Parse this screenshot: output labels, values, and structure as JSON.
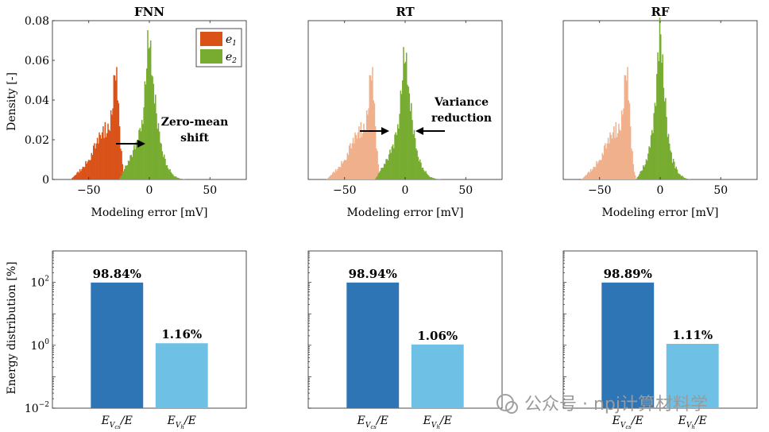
{
  "top_ylabel": "Density [-]",
  "top_xlabel": "Modeling error [mV]",
  "bottom_ylabel": "Energy distribution [%]",
  "watermark": "公众号 · npj计算材料学",
  "colors": {
    "e1": "#d95319",
    "e1_faded": "#f0b08c",
    "e2": "#77ac30",
    "bar_cs": "#2e75b6",
    "bar_h": "#6ec0e4"
  },
  "chart_data": [
    {
      "type": "area",
      "title": "FNN",
      "xlabel": "Modeling error [mV]",
      "ylabel": "Density [-]",
      "xlim": [
        -80,
        80
      ],
      "ylim": [
        0,
        0.08
      ],
      "xticks": [
        "-50",
        "0",
        "50"
      ],
      "yticks": [
        "0",
        "0.02",
        "0.04",
        "0.06",
        "0.08"
      ],
      "legend": {
        "position": "top-right",
        "entries": [
          "e1",
          "e2"
        ]
      },
      "series": [
        {
          "name": "e1",
          "x": [
            -65,
            -58,
            -50,
            -45,
            -40,
            -35,
            -32,
            -30,
            -28,
            -26,
            -24,
            -22,
            -20
          ],
          "y": [
            0,
            0.004,
            0.01,
            0.016,
            0.022,
            0.026,
            0.03,
            0.045,
            0.056,
            0.04,
            0.02,
            0.006,
            0
          ]
        },
        {
          "name": "e2",
          "x": [
            -25,
            -20,
            -15,
            -10,
            -6,
            -3,
            -1,
            0,
            1,
            3,
            6,
            10,
            15,
            20,
            25,
            30
          ],
          "y": [
            0,
            0.006,
            0.012,
            0.018,
            0.028,
            0.05,
            0.07,
            0.078,
            0.068,
            0.05,
            0.03,
            0.015,
            0.006,
            0.002,
            0.0005,
            0
          ]
        }
      ],
      "annotations": [
        {
          "text_lines": [
            "Zero-mean",
            "shift"
          ],
          "arrow": "right"
        }
      ]
    },
    {
      "type": "area",
      "title": "RT",
      "xlabel": "Modeling error [mV]",
      "xlim": [
        -80,
        80
      ],
      "ylim": [
        0,
        0.08
      ],
      "xticks": [
        "-50",
        "0",
        "50"
      ],
      "series": [
        {
          "name": "e1",
          "x": [
            -65,
            -58,
            -50,
            -45,
            -40,
            -35,
            -32,
            -30,
            -28,
            -26,
            -24,
            -22,
            -20
          ],
          "y": [
            0,
            0.004,
            0.01,
            0.016,
            0.022,
            0.026,
            0.03,
            0.045,
            0.056,
            0.04,
            0.02,
            0.006,
            0
          ],
          "faded": true
        },
        {
          "name": "e2",
          "x": [
            -25,
            -20,
            -15,
            -10,
            -6,
            -3,
            -1,
            0,
            1,
            3,
            6,
            10,
            15,
            20,
            25,
            30
          ],
          "y": [
            0,
            0.005,
            0.01,
            0.016,
            0.026,
            0.045,
            0.062,
            0.069,
            0.062,
            0.045,
            0.027,
            0.012,
            0.005,
            0.0015,
            0.0004,
            0
          ]
        }
      ],
      "annotations": [
        {
          "text_lines": [
            "Variance",
            "reduction"
          ],
          "arrow": "both"
        }
      ]
    },
    {
      "type": "area",
      "title": "RF",
      "xlabel": "Modeling error [mV]",
      "xlim": [
        -80,
        80
      ],
      "ylim": [
        0,
        0.08
      ],
      "xticks": [
        "-50",
        "0",
        "50"
      ],
      "series": [
        {
          "name": "e1",
          "x": [
            -65,
            -58,
            -50,
            -45,
            -40,
            -35,
            -32,
            -30,
            -28,
            -26,
            -24,
            -22,
            -20
          ],
          "y": [
            0,
            0.004,
            0.01,
            0.016,
            0.022,
            0.026,
            0.03,
            0.045,
            0.056,
            0.04,
            0.02,
            0.006,
            0
          ],
          "faded": true
        },
        {
          "name": "e2",
          "x": [
            -20,
            -15,
            -10,
            -6,
            -3,
            -1,
            0,
            1,
            3,
            6,
            10,
            15,
            20,
            25
          ],
          "y": [
            0,
            0.005,
            0.012,
            0.024,
            0.05,
            0.072,
            0.08,
            0.072,
            0.05,
            0.026,
            0.01,
            0.003,
            0.0008,
            0
          ]
        }
      ]
    },
    {
      "type": "bar",
      "ylabel": "Energy distribution [%]",
      "yscale": "log",
      "ylim": [
        0.01,
        1000
      ],
      "yticks": [
        "10^-2",
        "10^0",
        "10^2"
      ],
      "categories": [
        "E_Vcs/E",
        "E_Vh/E"
      ],
      "values": [
        98.84,
        1.16
      ],
      "data_labels": [
        "98.84%",
        "1.16%"
      ]
    },
    {
      "type": "bar",
      "yscale": "log",
      "ylim": [
        0.01,
        1000
      ],
      "categories": [
        "E_Vcs/E",
        "E_Vh/E"
      ],
      "values": [
        98.94,
        1.06
      ],
      "data_labels": [
        "98.94%",
        "1.06%"
      ]
    },
    {
      "type": "bar",
      "yscale": "log",
      "ylim": [
        0.01,
        1000
      ],
      "categories": [
        "E_Vcs/E",
        "E_Vh/E"
      ],
      "values": [
        98.89,
        1.11
      ],
      "data_labels": [
        "98.89%",
        "1.11%"
      ]
    }
  ]
}
